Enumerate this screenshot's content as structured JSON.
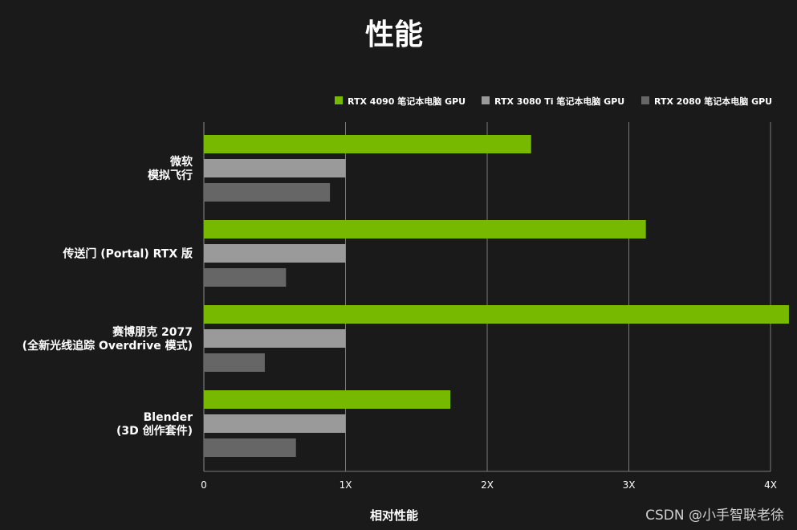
{
  "watermark": "CSDN @小手智联老徐",
  "chart_data": {
    "type": "bar",
    "orientation": "horizontal",
    "title": "性能",
    "xlabel": "相对性能",
    "ylabel": "",
    "xlim": [
      0,
      4
    ],
    "xticks": [
      0,
      1,
      2,
      3,
      4
    ],
    "xtick_labels": [
      "0",
      "1X",
      "2X",
      "3X",
      "4X"
    ],
    "grid": true,
    "legend_position": "top-right",
    "categories": [
      [
        "微软",
        "模拟飞行"
      ],
      [
        "传送门 (Portal) RTX 版"
      ],
      [
        "赛博朋克 2077",
        "(全新光线追踪 Overdrive 模式)"
      ],
      [
        "Blender",
        "(3D 创作套件)"
      ]
    ],
    "series": [
      {
        "name": "RTX 4090 笔记本电脑 GPU",
        "color": "#76b900",
        "values": [
          2.31,
          3.12,
          4.13,
          1.74
        ]
      },
      {
        "name": "RTX 3080 Ti 笔记本电脑 GPU",
        "color": "#9a9a9a",
        "values": [
          1.0,
          1.0,
          1.0,
          1.0
        ]
      },
      {
        "name": "RTX 2080 笔记本电脑 GPU",
        "color": "#666666",
        "values": [
          0.89,
          0.58,
          0.43,
          0.65
        ]
      }
    ]
  }
}
